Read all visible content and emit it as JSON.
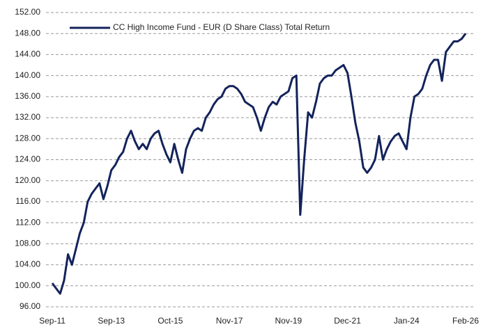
{
  "chart_data": {
    "type": "line",
    "categories": [
      "Sep-11",
      null,
      null,
      null,
      null,
      null,
      null,
      null,
      null,
      null,
      null,
      null,
      null,
      null,
      null,
      "Sep-13",
      null,
      null,
      null,
      null,
      null,
      null,
      null,
      null,
      null,
      null,
      null,
      null,
      null,
      null,
      "Oct-15",
      null,
      null,
      null,
      null,
      null,
      null,
      null,
      null,
      null,
      null,
      null,
      null,
      null,
      null,
      "Nov-17",
      null,
      null,
      null,
      null,
      null,
      null,
      null,
      null,
      null,
      null,
      null,
      null,
      null,
      null,
      "Nov-19",
      null,
      null,
      null,
      null,
      null,
      null,
      null,
      null,
      null,
      null,
      null,
      null,
      null,
      null,
      "Dec-21",
      null,
      null,
      null,
      null,
      null,
      null,
      null,
      null,
      null,
      null,
      null,
      null,
      null,
      null,
      "Jan-24",
      null,
      null,
      null,
      null,
      null,
      null,
      null,
      null,
      null,
      null,
      null,
      null,
      null,
      null,
      "Feb-26"
    ],
    "series": [
      {
        "name": "CC High Income Fund - EUR (D Share Class) Total Return",
        "color": "#13235b",
        "values": [
          100.5,
          99.5,
          98.5,
          101,
          106,
          104,
          107,
          110,
          112,
          116,
          117.5,
          118.5,
          119.5,
          116.5,
          119,
          122,
          123,
          124.5,
          125.5,
          128,
          129.5,
          127.5,
          126,
          127,
          126,
          128,
          129,
          129.5,
          127,
          125,
          123.5,
          127,
          124,
          121.5,
          126,
          128,
          129.5,
          130,
          129.5,
          132,
          133,
          134.5,
          135.5,
          136,
          137.5,
          138,
          138,
          137.5,
          136.5,
          135,
          134.5,
          134,
          132,
          129.5,
          132,
          134,
          135,
          134.5,
          136,
          136.5,
          137,
          139.5,
          140,
          113.5,
          124,
          133,
          132,
          135,
          138.5,
          139.5,
          140,
          140,
          141,
          141.5,
          142,
          140.5,
          136,
          131,
          127.5,
          122.5,
          121.5,
          122.5,
          124,
          128.5,
          124,
          126,
          127.5,
          128.5,
          129,
          127.5,
          126,
          132,
          136,
          136.5,
          137.5,
          140,
          142,
          143,
          143,
          139,
          144.5,
          145.5,
          146.5,
          146.5,
          147,
          148
        ]
      }
    ],
    "ylim": [
      96,
      152
    ],
    "yticks": [
      {
        "value": 96,
        "label": "96.00"
      },
      {
        "value": 100,
        "label": "100.00"
      },
      {
        "value": 104,
        "label": "104.00"
      },
      {
        "value": 108,
        "label": "108.00"
      },
      {
        "value": 112,
        "label": "112.00"
      },
      {
        "value": 116,
        "label": "116.00"
      },
      {
        "value": 120,
        "label": "120.00"
      },
      {
        "value": 124,
        "label": "124.00"
      },
      {
        "value": 128,
        "label": "128.00"
      },
      {
        "value": 132,
        "label": "132.00"
      },
      {
        "value": 136,
        "label": "136.00"
      },
      {
        "value": 140,
        "label": "140.00"
      },
      {
        "value": 144,
        "label": "144.00"
      },
      {
        "value": 148,
        "label": "148.00"
      },
      {
        "value": 152,
        "label": "152.00"
      }
    ],
    "grid": true,
    "legend": "upper left"
  }
}
